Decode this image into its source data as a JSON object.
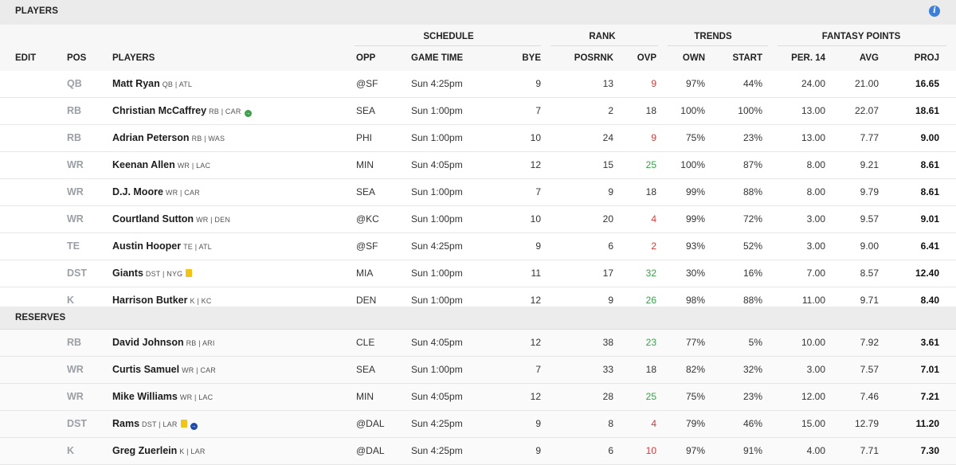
{
  "sections": {
    "players_title": "PLAYERS",
    "reserves_title": "RESERVES"
  },
  "header": {
    "groups": {
      "schedule": "SCHEDULE",
      "rank": "RANK",
      "trends": "TRENDS",
      "fantasy_points": "FANTASY POINTS"
    },
    "columns": {
      "edit": "EDIT",
      "pos": "POS",
      "players": "PLAYERS",
      "opp": "OPP",
      "game_time": "GAME TIME",
      "bye": "BYE",
      "posrnk": "POSRNK",
      "ovp": "OVP",
      "own": "OWN",
      "start": "START",
      "per14": "PER. 14",
      "avg": "AVG",
      "proj": "PROJ"
    }
  },
  "colors": {
    "ovp_bad": "#d23b3b",
    "ovp_good": "#3aa04a",
    "info_icon": "#3d7ed6",
    "note_icon": "#f0c419"
  },
  "starters": [
    {
      "pos": "QB",
      "name": "Matt Ryan",
      "meta": "QB | ATL",
      "icons": [],
      "opp": "@SF",
      "time": "Sun 4:25pm",
      "bye": "9",
      "posrnk": "13",
      "ovp": "9",
      "ovp_color": "red",
      "own": "97%",
      "start": "44%",
      "per14": "24.00",
      "avg": "21.00",
      "proj": "16.65"
    },
    {
      "pos": "RB",
      "name": "Christian McCaffrey",
      "meta": "RB | CAR",
      "icons": [
        "green-status-icon"
      ],
      "opp": "SEA",
      "time": "Sun 1:00pm",
      "bye": "7",
      "posrnk": "2",
      "ovp": "18",
      "ovp_color": "",
      "own": "100%",
      "start": "100%",
      "per14": "13.00",
      "avg": "22.07",
      "proj": "18.61"
    },
    {
      "pos": "RB",
      "name": "Adrian Peterson",
      "meta": "RB | WAS",
      "icons": [],
      "opp": "PHI",
      "time": "Sun 1:00pm",
      "bye": "10",
      "posrnk": "24",
      "ovp": "9",
      "ovp_color": "red",
      "own": "75%",
      "start": "23%",
      "per14": "13.00",
      "avg": "7.77",
      "proj": "9.00"
    },
    {
      "pos": "WR",
      "name": "Keenan Allen",
      "meta": "WR | LAC",
      "icons": [],
      "opp": "MIN",
      "time": "Sun 4:05pm",
      "bye": "12",
      "posrnk": "15",
      "ovp": "25",
      "ovp_color": "green",
      "own": "100%",
      "start": "87%",
      "per14": "8.00",
      "avg": "9.21",
      "proj": "8.61"
    },
    {
      "pos": "WR",
      "name": "D.J. Moore",
      "meta": "WR | CAR",
      "icons": [],
      "opp": "SEA",
      "time": "Sun 1:00pm",
      "bye": "7",
      "posrnk": "9",
      "ovp": "18",
      "ovp_color": "",
      "own": "99%",
      "start": "88%",
      "per14": "8.00",
      "avg": "9.79",
      "proj": "8.61"
    },
    {
      "pos": "WR",
      "name": "Courtland Sutton",
      "meta": "WR | DEN",
      "icons": [],
      "opp": "@KC",
      "time": "Sun 1:00pm",
      "bye": "10",
      "posrnk": "20",
      "ovp": "4",
      "ovp_color": "red",
      "own": "99%",
      "start": "72%",
      "per14": "3.00",
      "avg": "9.57",
      "proj": "9.01"
    },
    {
      "pos": "TE",
      "name": "Austin Hooper",
      "meta": "TE | ATL",
      "icons": [],
      "opp": "@SF",
      "time": "Sun 4:25pm",
      "bye": "9",
      "posrnk": "6",
      "ovp": "2",
      "ovp_color": "red",
      "own": "93%",
      "start": "52%",
      "per14": "3.00",
      "avg": "9.00",
      "proj": "6.41"
    },
    {
      "pos": "DST",
      "name": "Giants",
      "meta": "DST | NYG",
      "icons": [
        "note-icon"
      ],
      "opp": "MIA",
      "time": "Sun 1:00pm",
      "bye": "11",
      "posrnk": "17",
      "ovp": "32",
      "ovp_color": "green",
      "own": "30%",
      "start": "16%",
      "per14": "7.00",
      "avg": "8.57",
      "proj": "12.40"
    },
    {
      "pos": "K",
      "name": "Harrison Butker",
      "meta": "K | KC",
      "icons": [],
      "opp": "DEN",
      "time": "Sun 1:00pm",
      "bye": "12",
      "posrnk": "9",
      "ovp": "26",
      "ovp_color": "green",
      "own": "98%",
      "start": "88%",
      "per14": "11.00",
      "avg": "9.71",
      "proj": "8.40"
    }
  ],
  "reserves": [
    {
      "pos": "RB",
      "name": "David Johnson",
      "meta": "RB | ARI",
      "icons": [],
      "opp": "CLE",
      "time": "Sun 4:05pm",
      "bye": "12",
      "posrnk": "38",
      "ovp": "23",
      "ovp_color": "green",
      "own": "77%",
      "start": "5%",
      "per14": "10.00",
      "avg": "7.92",
      "proj": "3.61"
    },
    {
      "pos": "WR",
      "name": "Curtis Samuel",
      "meta": "WR | CAR",
      "icons": [],
      "opp": "SEA",
      "time": "Sun 1:00pm",
      "bye": "7",
      "posrnk": "33",
      "ovp": "18",
      "ovp_color": "",
      "own": "82%",
      "start": "32%",
      "per14": "3.00",
      "avg": "7.57",
      "proj": "7.01"
    },
    {
      "pos": "WR",
      "name": "Mike Williams",
      "meta": "WR | LAC",
      "icons": [],
      "opp": "MIN",
      "time": "Sun 4:05pm",
      "bye": "12",
      "posrnk": "28",
      "ovp": "25",
      "ovp_color": "green",
      "own": "75%",
      "start": "23%",
      "per14": "12.00",
      "avg": "7.46",
      "proj": "7.21"
    },
    {
      "pos": "DST",
      "name": "Rams",
      "meta": "DST | LAR",
      "icons": [
        "note-icon",
        "blue-status-icon"
      ],
      "opp": "@DAL",
      "time": "Sun 4:25pm",
      "bye": "9",
      "posrnk": "8",
      "ovp": "4",
      "ovp_color": "red",
      "own": "79%",
      "start": "46%",
      "per14": "15.00",
      "avg": "12.79",
      "proj": "11.20"
    },
    {
      "pos": "K",
      "name": "Greg Zuerlein",
      "meta": "K | LAR",
      "icons": [],
      "opp": "@DAL",
      "time": "Sun 4:25pm",
      "bye": "9",
      "posrnk": "6",
      "ovp": "10",
      "ovp_color": "red",
      "own": "97%",
      "start": "91%",
      "per14": "4.00",
      "avg": "7.71",
      "proj": "7.30"
    }
  ]
}
